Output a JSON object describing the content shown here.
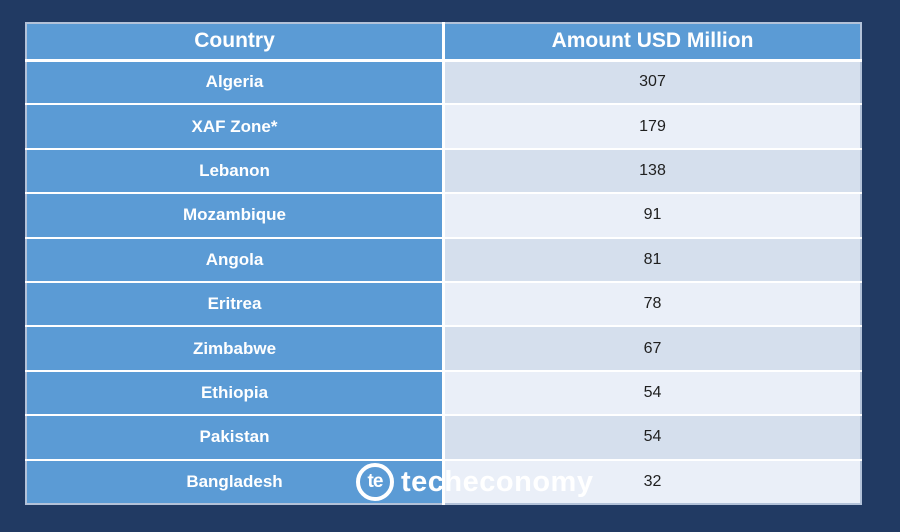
{
  "colors": {
    "background": "#213a63",
    "cell_blue": "#5b9bd5",
    "band_dark": "#d5dfed",
    "band_light": "#eaeff8",
    "divider": "#ffffff",
    "outer_border": "#b3c2d9",
    "header_text": "#ffffff",
    "amount_text": "#1f1f1f"
  },
  "table": {
    "headers": [
      "Country",
      "Amount USD Million"
    ],
    "rows": [
      {
        "country": "Algeria",
        "amount": "307"
      },
      {
        "country": "XAF Zone*",
        "amount": "179"
      },
      {
        "country": "Lebanon",
        "amount": "138"
      },
      {
        "country": "Mozambique",
        "amount": "91"
      },
      {
        "country": "Angola",
        "amount": "81"
      },
      {
        "country": "Eritrea",
        "amount": "78"
      },
      {
        "country": "Zimbabwe",
        "amount": "67"
      },
      {
        "country": "Ethiopia",
        "amount": "54"
      },
      {
        "country": "Pakistan",
        "amount": "54"
      },
      {
        "country": "Bangladesh",
        "amount": "32"
      }
    ]
  },
  "watermark": {
    "circle_text": "te",
    "brand_text": "techeconomy"
  },
  "chart_data": {
    "type": "table",
    "columns": [
      "Country",
      "Amount USD Million"
    ],
    "categories": [
      "Algeria",
      "XAF Zone*",
      "Lebanon",
      "Mozambique",
      "Angola",
      "Eritrea",
      "Zimbabwe",
      "Ethiopia",
      "Pakistan",
      "Bangladesh"
    ],
    "values": [
      307,
      179,
      138,
      91,
      81,
      78,
      67,
      54,
      54,
      32
    ],
    "title": "",
    "legend": false
  }
}
